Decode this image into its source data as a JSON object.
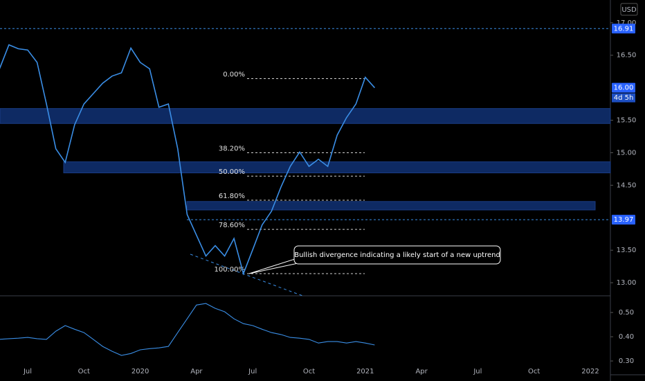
{
  "chart_data": [
    {
      "type": "line",
      "currency": "USD",
      "countdown": "4d 5h",
      "color": "#3a8ee6",
      "categories": [
        null,
        null,
        null,
        "Jul",
        null,
        null,
        null,
        null,
        null,
        "Oct",
        null,
        null,
        null,
        null,
        null,
        "2020",
        null,
        null,
        null,
        null,
        null,
        "Apr",
        null,
        null,
        null,
        null,
        null,
        "Jul",
        null,
        null,
        null,
        null,
        null,
        "Oct",
        null,
        null,
        null,
        null,
        null,
        "2021",
        null,
        null,
        null,
        null,
        null,
        "Apr",
        null,
        null,
        null,
        null,
        null,
        "Jul",
        null,
        null,
        null,
        null,
        null,
        "Oct",
        null,
        null,
        null,
        null,
        null,
        "2022",
        null,
        null
      ],
      "values": [
        16.29,
        16.66,
        16.6,
        16.58,
        16.39,
        15.75,
        15.06,
        14.85,
        15.43,
        15.75,
        15.91,
        16.07,
        16.18,
        16.23,
        16.61,
        16.39,
        16.29,
        15.7,
        15.75,
        15.06,
        14.05,
        13.73,
        13.41,
        13.57,
        13.41,
        13.68,
        13.14,
        13.51,
        13.89,
        14.1,
        14.47,
        14.79,
        15.01,
        14.79,
        14.9,
        14.79,
        15.27,
        15.54,
        15.75,
        16.16,
        16.0,
        null,
        null,
        null,
        null,
        null,
        null,
        null,
        null,
        null,
        null,
        null,
        null,
        null,
        null,
        null,
        null,
        null,
        null,
        null,
        null,
        null,
        null,
        null,
        null,
        null
      ],
      "ylim": [
        12.82,
        17.35
      ],
      "yticks": [
        {
          "value": 17,
          "label": "17.00"
        },
        {
          "value": 16.5,
          "label": "16.50"
        },
        {
          "value": 15.5,
          "label": "15.50"
        },
        {
          "value": 15,
          "label": "15.00"
        },
        {
          "value": 14.5,
          "label": "14.50"
        },
        {
          "value": 13.5,
          "label": "13.50"
        },
        {
          "value": 13,
          "label": "13.00"
        }
      ],
      "price_tags": [
        {
          "value": 16.91,
          "label": "16.91"
        },
        {
          "value": 16.0,
          "label": "16.00"
        },
        {
          "value": 13.97,
          "label": "13.97"
        }
      ],
      "zones": [
        [
          15.45,
          15.68
        ],
        [
          14.69,
          14.86
        ],
        [
          14.12,
          14.25
        ]
      ],
      "fib": [
        {
          "value": 16.14,
          "label": "0.00%"
        },
        {
          "value": 15.0,
          "label": "38.20%"
        },
        {
          "value": 14.64,
          "label": "50.00%"
        },
        {
          "value": 14.27,
          "label": "61.80%"
        },
        {
          "value": 13.82,
          "label": "78.60%"
        },
        {
          "value": 13.14,
          "label": "100.00%"
        }
      ],
      "annotation": "Bullish divergence indicating a likely start of a new uptrend"
    },
    {
      "type": "line",
      "color": "#3a8ee6",
      "values": [
        0.389,
        0.392,
        0.394,
        0.397,
        0.392,
        0.389,
        0.423,
        0.446,
        0.431,
        0.417,
        0.389,
        0.36,
        0.34,
        0.323,
        0.331,
        0.346,
        0.351,
        0.354,
        0.36,
        0.417,
        0.474,
        0.531,
        0.537,
        0.517,
        0.503,
        0.474,
        0.454,
        0.446,
        0.431,
        0.417,
        0.409,
        0.397,
        0.394,
        0.389,
        0.374,
        0.38,
        0.38,
        0.374,
        0.38,
        0.374,
        0.366
      ],
      "ylim": [
        0.246,
        0.566
      ],
      "yticks": [
        {
          "value": 0.5,
          "label": "0.50"
        },
        {
          "value": 0.4,
          "label": "0.40"
        },
        {
          "value": 0.3,
          "label": "0.30"
        }
      ]
    }
  ]
}
